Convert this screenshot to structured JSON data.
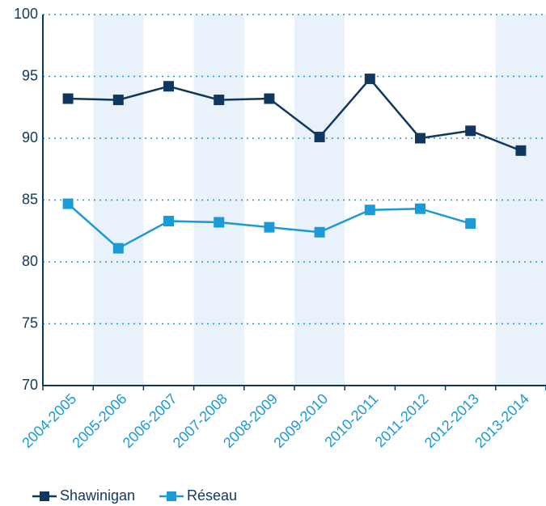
{
  "chart_data": {
    "type": "line",
    "categories": [
      "2004-2005",
      "2005-2006",
      "2006-2007",
      "2007-2008",
      "2008-2009",
      "2009-2010",
      "2010-2011",
      "2011-2012",
      "2012-2013",
      "2013-2014"
    ],
    "series": [
      {
        "name": "Shawinigan",
        "color": "#10385e",
        "values": [
          93.2,
          93.1,
          94.2,
          93.1,
          93.2,
          90.1,
          94.8,
          90.0,
          90.6,
          89.0
        ]
      },
      {
        "name": "Réseau",
        "color": "#1a9ad6",
        "values": [
          84.7,
          81.1,
          83.3,
          83.2,
          82.8,
          82.4,
          84.2,
          84.3,
          83.1,
          null
        ]
      }
    ],
    "ylim": [
      70,
      100
    ],
    "yticks": [
      70,
      75,
      80,
      85,
      90,
      95,
      100
    ],
    "grid": true
  }
}
